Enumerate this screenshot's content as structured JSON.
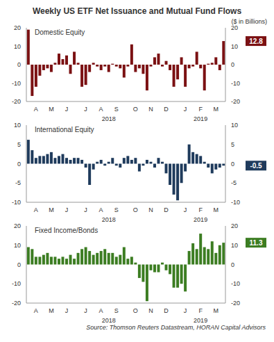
{
  "title": "Weekly US ETF Net Issuance and Mutual Fund Flows",
  "subtitle": "($ in Billions)",
  "source": "Source: Thomson Reuters Datastream, HORAN Capital Advisors",
  "chart_data": [
    {
      "type": "bar",
      "title": "Domestic Equity",
      "color": "#7b1113",
      "ylim": [
        -20,
        20
      ],
      "yticks": [
        -20,
        -10,
        0,
        10,
        20
      ],
      "categories": [
        null,
        null,
        "A",
        null,
        null,
        null,
        "M",
        null,
        null,
        null,
        "J",
        null,
        null,
        null,
        null,
        "J",
        null,
        null,
        null,
        "A",
        null,
        null,
        null,
        "S",
        null,
        null,
        null,
        null,
        "O",
        null,
        null,
        null,
        "N",
        null,
        null,
        null,
        "D",
        null,
        null,
        null,
        null,
        "J",
        null,
        null,
        null,
        "F",
        null,
        null,
        null,
        "M",
        null,
        null
      ],
      "year_categories": [
        null,
        null,
        null,
        null,
        null,
        null,
        null,
        null,
        null,
        null,
        null,
        null,
        null,
        null,
        null,
        null,
        null,
        null,
        null,
        null,
        null,
        "2018",
        null,
        null,
        null,
        null,
        null,
        null,
        null,
        null,
        null,
        null,
        null,
        null,
        null,
        null,
        null,
        null,
        null,
        null,
        null,
        null,
        null,
        null,
        null,
        "2019",
        null,
        null,
        null,
        null,
        null,
        null
      ],
      "values": [
        19,
        -17,
        -12,
        -6,
        -3,
        -2,
        -4,
        1,
        6,
        3,
        5,
        -5,
        7,
        1,
        -12,
        -11,
        -4,
        1,
        -1,
        -3,
        -1,
        -4,
        0.5,
        -1,
        -2,
        -7,
        -1,
        11,
        -4,
        -2,
        -5,
        -14,
        -1,
        4,
        6,
        -1,
        2,
        -3,
        -12,
        -8,
        4,
        -12,
        -2,
        -1,
        7,
        -2,
        -14,
        0.5,
        1,
        4,
        -3,
        12.8
      ],
      "value_labels": [
        null,
        null,
        null,
        null,
        null,
        null,
        null,
        null,
        null,
        null,
        null,
        null,
        null,
        null,
        null,
        null,
        null,
        null,
        null,
        null,
        null,
        null,
        null,
        null,
        null,
        null,
        null,
        null,
        null,
        null,
        null,
        null,
        null,
        null,
        null,
        null,
        null,
        null,
        null,
        null,
        null,
        null,
        null,
        null,
        null,
        null,
        null,
        null,
        null,
        null,
        null,
        "12.8"
      ]
    },
    {
      "type": "bar",
      "title": "International Equity",
      "color": "#1f3b5c",
      "ylim": [
        -10,
        10
      ],
      "yticks": [
        -10,
        -5,
        0,
        5,
        10
      ],
      "categories": [
        null,
        null,
        "A",
        null,
        null,
        null,
        "M",
        null,
        null,
        null,
        "J",
        null,
        null,
        null,
        null,
        "J",
        null,
        null,
        null,
        "A",
        null,
        null,
        null,
        "S",
        null,
        null,
        null,
        null,
        "O",
        null,
        null,
        null,
        "N",
        null,
        null,
        null,
        "D",
        null,
        null,
        null,
        null,
        "J",
        null,
        null,
        null,
        "F",
        null,
        null,
        null,
        "M",
        null,
        null
      ],
      "year_categories": [
        null,
        null,
        null,
        null,
        null,
        null,
        null,
        null,
        null,
        null,
        null,
        null,
        null,
        null,
        null,
        null,
        null,
        null,
        null,
        null,
        null,
        "2018",
        null,
        null,
        null,
        null,
        null,
        null,
        null,
        null,
        null,
        null,
        null,
        null,
        null,
        null,
        null,
        null,
        null,
        null,
        null,
        null,
        null,
        null,
        null,
        "2019",
        null,
        null,
        null,
        null,
        null,
        null
      ],
      "values": [
        6.2,
        3.5,
        1.5,
        2,
        2,
        2.5,
        3,
        1.5,
        2,
        2.5,
        1.5,
        1,
        1.5,
        1.5,
        1,
        -1,
        -5.5,
        -1.5,
        0.5,
        1,
        -0.5,
        0.5,
        1.5,
        -0.5,
        -1,
        1.5,
        2,
        1,
        1.5,
        -2,
        -0.5,
        1,
        0.5,
        -1,
        1.5,
        0.5,
        -2.5,
        -5.5,
        -8,
        -9.5,
        -5,
        -2,
        5,
        3,
        2.5,
        2,
        0.5,
        -1,
        -2.5,
        -1.5,
        -1,
        -0.5
      ],
      "value_labels": [
        null,
        null,
        null,
        null,
        null,
        null,
        null,
        null,
        null,
        null,
        null,
        null,
        null,
        null,
        null,
        null,
        null,
        null,
        null,
        null,
        null,
        null,
        null,
        null,
        null,
        null,
        null,
        null,
        null,
        null,
        null,
        null,
        null,
        null,
        null,
        null,
        null,
        null,
        null,
        null,
        null,
        null,
        null,
        null,
        null,
        null,
        null,
        null,
        null,
        null,
        null,
        "-0.5"
      ]
    },
    {
      "type": "bar",
      "title": "Fixed Income/Bonds",
      "color": "#3c7d22",
      "ylim": [
        -20,
        20
      ],
      "yticks": [
        -20,
        -10,
        0,
        10,
        20
      ],
      "categories": [
        null,
        null,
        "A",
        null,
        null,
        null,
        "M",
        null,
        null,
        null,
        "J",
        null,
        null,
        null,
        null,
        "J",
        null,
        null,
        null,
        "A",
        null,
        null,
        null,
        "S",
        null,
        null,
        null,
        null,
        "O",
        null,
        null,
        null,
        "N",
        null,
        null,
        null,
        "D",
        null,
        null,
        null,
        null,
        "J",
        null,
        null,
        null,
        "F",
        null,
        null,
        null,
        "M",
        null,
        null
      ],
      "year_categories": [
        null,
        null,
        null,
        null,
        null,
        null,
        null,
        null,
        null,
        null,
        null,
        null,
        null,
        null,
        null,
        null,
        null,
        null,
        null,
        null,
        null,
        "2018",
        null,
        null,
        null,
        null,
        null,
        null,
        null,
        null,
        null,
        null,
        null,
        null,
        null,
        null,
        null,
        null,
        null,
        null,
        null,
        null,
        null,
        null,
        null,
        "2019",
        null,
        null,
        null,
        null,
        null,
        null
      ],
      "values": [
        9,
        8,
        4,
        4,
        5,
        6,
        4,
        4,
        3,
        4,
        3,
        5,
        3,
        6,
        8,
        9,
        7,
        5,
        6,
        7,
        8,
        6,
        6,
        4,
        5,
        9,
        3,
        4,
        1,
        -7,
        -9,
        -19,
        -3,
        -4,
        -4,
        1,
        -3,
        -5,
        -12,
        -12,
        -10,
        -14,
        7,
        11,
        8,
        16,
        9,
        8,
        12,
        6,
        10,
        11.3
      ],
      "value_labels": [
        null,
        null,
        null,
        null,
        null,
        null,
        null,
        null,
        null,
        null,
        null,
        null,
        null,
        null,
        null,
        null,
        null,
        null,
        null,
        null,
        null,
        null,
        null,
        null,
        null,
        null,
        null,
        null,
        null,
        null,
        null,
        null,
        null,
        null,
        null,
        null,
        null,
        null,
        null,
        null,
        null,
        null,
        null,
        null,
        null,
        null,
        null,
        null,
        null,
        null,
        null,
        "11.3"
      ]
    }
  ]
}
